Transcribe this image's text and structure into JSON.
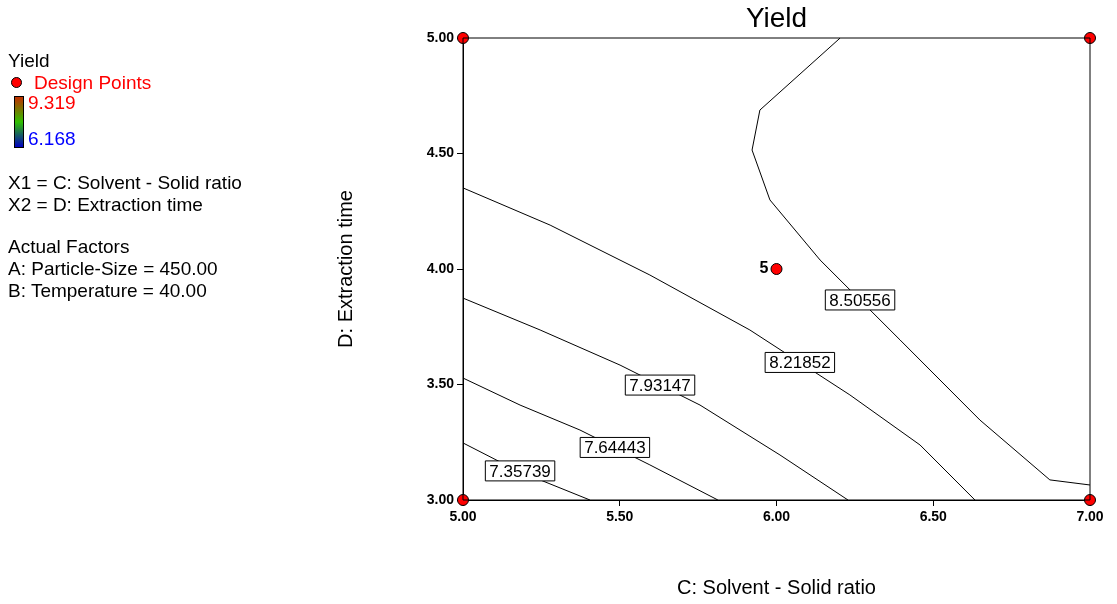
{
  "chart_data": {
    "type": "line",
    "title": "Yield",
    "xlabel": "C: Solvent - Solid ratio",
    "ylabel": "D: Extraction time",
    "legend_title": "Yield",
    "legend": "left",
    "grid": false,
    "line_style": "solid",
    "xlim": [
      5,
      7
    ],
    "ylim": [
      3,
      5
    ],
    "xticks": [
      {
        "value": 5,
        "label": "5.00"
      },
      {
        "value": 5.5,
        "label": "5.50"
      },
      {
        "value": 6,
        "label": "6.00"
      },
      {
        "value": 6.5,
        "label": "6.50"
      },
      {
        "value": 7,
        "label": "7.00"
      }
    ],
    "yticks": [
      {
        "value": 3,
        "label": "3.00"
      },
      {
        "value": 3.5,
        "label": "3.50"
      },
      {
        "value": 4,
        "label": "4.00"
      },
      {
        "value": 4.5,
        "label": "4.50"
      },
      {
        "value": 5,
        "label": "5.00"
      }
    ],
    "series": [
      {
        "name": "7.35739",
        "color": "#000000",
        "x": [
          5,
          5.118,
          5.246,
          5.405
        ],
        "values": [
          3.247,
          3.165,
          3.087,
          3.0
        ]
      },
      {
        "name": "7.64443",
        "color": "#000000",
        "x": [
          5,
          5.182,
          5.373,
          5.596,
          5.813
        ],
        "values": [
          3.528,
          3.411,
          3.303,
          3.152,
          3.0
        ]
      },
      {
        "name": "7.93147",
        "color": "#000000",
        "x": [
          5,
          5.246,
          5.501,
          5.756,
          6.011,
          6.228
        ],
        "values": [
          3.874,
          3.736,
          3.584,
          3.411,
          3.195,
          3.0
        ]
      },
      {
        "name": "8.21852",
        "color": "#000000",
        "x": [
          5,
          5.278,
          5.596,
          5.915,
          6.234,
          6.458,
          6.633
        ],
        "values": [
          4.351,
          4.19,
          3.974,
          3.736,
          3.455,
          3.238,
          3.0
        ]
      },
      {
        "name": "8.50556",
        "color": "#000000",
        "x": [
          6.203,
          5.947,
          5.922,
          5.979,
          6.139,
          6.394,
          6.649,
          6.872,
          7.0
        ],
        "values": [
          5.0,
          4.688,
          4.515,
          4.299,
          4.039,
          3.693,
          3.346,
          3.087,
          3.065
        ]
      },
      {
        "name": "Design Points",
        "type": "scatter",
        "marker": "circle",
        "color": "#ff0000",
        "x": [
          5,
          7,
          5,
          7,
          6
        ],
        "values": [
          5,
          5,
          3,
          3,
          4
        ]
      }
    ],
    "annotations": [
      {
        "text": "5",
        "x": 6,
        "y": 4
      },
      "9.319",
      "6.168",
      "X1 = C: Solvent - Solid ratio",
      "X2 = D: Extraction time",
      "Actual Factors",
      "A: Particle-Size = 450.00",
      "B: Temperature = 40.00"
    ]
  }
}
